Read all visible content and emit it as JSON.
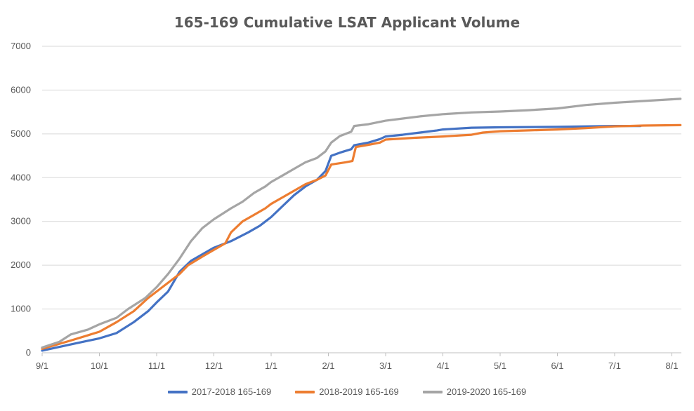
{
  "chart_data": {
    "type": "line",
    "title": "165-169 Cumulative LSAT Applicant Volume",
    "xlabel": "",
    "ylabel": "",
    "ylim": [
      0,
      7000
    ],
    "yticks": [
      0,
      1000,
      2000,
      3000,
      4000,
      5000,
      6000,
      7000
    ],
    "xlim": [
      0,
      11.15
    ],
    "xticks": [
      {
        "x": 0,
        "label": "9/1"
      },
      {
        "x": 1,
        "label": "10/1"
      },
      {
        "x": 2,
        "label": "11/1"
      },
      {
        "x": 3,
        "label": "12/1"
      },
      {
        "x": 4,
        "label": "1/1"
      },
      {
        "x": 5,
        "label": "2/1"
      },
      {
        "x": 6,
        "label": "3/1"
      },
      {
        "x": 7,
        "label": "4/1"
      },
      {
        "x": 8,
        "label": "5/1"
      },
      {
        "x": 9,
        "label": "6/1"
      },
      {
        "x": 10,
        "label": "7/1"
      },
      {
        "x": 11,
        "label": "8/1"
      }
    ],
    "grid": true,
    "legend_position": "bottom",
    "series": [
      {
        "name": "2017-2018 165-169",
        "color": "#4472C4",
        "points": [
          [
            0,
            50
          ],
          [
            0.5,
            190
          ],
          [
            1,
            330
          ],
          [
            1.3,
            450
          ],
          [
            1.6,
            700
          ],
          [
            1.85,
            950
          ],
          [
            2,
            1150
          ],
          [
            2.2,
            1400
          ],
          [
            2.4,
            1850
          ],
          [
            2.6,
            2100
          ],
          [
            2.8,
            2250
          ],
          [
            3,
            2400
          ],
          [
            3.3,
            2550
          ],
          [
            3.6,
            2750
          ],
          [
            3.8,
            2900
          ],
          [
            4,
            3100
          ],
          [
            4.2,
            3350
          ],
          [
            4.4,
            3600
          ],
          [
            4.6,
            3800
          ],
          [
            4.8,
            3950
          ],
          [
            4.95,
            4150
          ],
          [
            5.05,
            4500
          ],
          [
            5.2,
            4570
          ],
          [
            5.4,
            4650
          ],
          [
            5.45,
            4740
          ],
          [
            5.7,
            4800
          ],
          [
            5.9,
            4880
          ],
          [
            6,
            4940
          ],
          [
            6.3,
            4980
          ],
          [
            6.6,
            5030
          ],
          [
            6.9,
            5080
          ],
          [
            7,
            5100
          ],
          [
            7.5,
            5140
          ],
          [
            8,
            5150
          ],
          [
            9,
            5160
          ],
          [
            9.5,
            5170
          ],
          [
            10,
            5180
          ],
          [
            10.45,
            5180
          ]
        ]
      },
      {
        "name": "2018-2019 165-169",
        "color": "#ED7D31",
        "points": [
          [
            0,
            90
          ],
          [
            0.5,
            280
          ],
          [
            1,
            480
          ],
          [
            1.3,
            700
          ],
          [
            1.6,
            950
          ],
          [
            1.85,
            1250
          ],
          [
            2,
            1400
          ],
          [
            2.2,
            1600
          ],
          [
            2.4,
            1800
          ],
          [
            2.55,
            2000
          ],
          [
            2.8,
            2200
          ],
          [
            3,
            2350
          ],
          [
            3.2,
            2500
          ],
          [
            3.3,
            2750
          ],
          [
            3.5,
            3000
          ],
          [
            3.7,
            3150
          ],
          [
            3.9,
            3300
          ],
          [
            4,
            3400
          ],
          [
            4.2,
            3550
          ],
          [
            4.4,
            3700
          ],
          [
            4.6,
            3850
          ],
          [
            4.8,
            3950
          ],
          [
            4.95,
            4050
          ],
          [
            5.05,
            4300
          ],
          [
            5.3,
            4350
          ],
          [
            5.42,
            4380
          ],
          [
            5.48,
            4700
          ],
          [
            5.7,
            4750
          ],
          [
            5.9,
            4800
          ],
          [
            6,
            4870
          ],
          [
            6.5,
            4910
          ],
          [
            7,
            4940
          ],
          [
            7.5,
            4980
          ],
          [
            7.7,
            5030
          ],
          [
            8,
            5060
          ],
          [
            8.5,
            5080
          ],
          [
            9,
            5100
          ],
          [
            9.5,
            5130
          ],
          [
            10,
            5170
          ],
          [
            10.5,
            5190
          ],
          [
            11.15,
            5200
          ]
        ]
      },
      {
        "name": "2019-2020 165-169",
        "color": "#A5A5A5",
        "points": [
          [
            0,
            120
          ],
          [
            0.3,
            250
          ],
          [
            0.5,
            420
          ],
          [
            0.8,
            530
          ],
          [
            1,
            650
          ],
          [
            1.3,
            800
          ],
          [
            1.5,
            1000
          ],
          [
            1.8,
            1250
          ],
          [
            2,
            1500
          ],
          [
            2.2,
            1800
          ],
          [
            2.4,
            2150
          ],
          [
            2.6,
            2550
          ],
          [
            2.8,
            2850
          ],
          [
            3,
            3050
          ],
          [
            3.3,
            3300
          ],
          [
            3.5,
            3450
          ],
          [
            3.7,
            3650
          ],
          [
            3.9,
            3800
          ],
          [
            4,
            3900
          ],
          [
            4.2,
            4050
          ],
          [
            4.4,
            4200
          ],
          [
            4.6,
            4350
          ],
          [
            4.8,
            4450
          ],
          [
            4.95,
            4600
          ],
          [
            5.05,
            4800
          ],
          [
            5.2,
            4950
          ],
          [
            5.4,
            5050
          ],
          [
            5.45,
            5180
          ],
          [
            5.7,
            5220
          ],
          [
            6,
            5300
          ],
          [
            6.3,
            5350
          ],
          [
            6.6,
            5400
          ],
          [
            7,
            5450
          ],
          [
            7.5,
            5490
          ],
          [
            8,
            5510
          ],
          [
            8.5,
            5540
          ],
          [
            9,
            5580
          ],
          [
            9.5,
            5660
          ],
          [
            10,
            5710
          ],
          [
            10.5,
            5750
          ],
          [
            11.15,
            5800
          ]
        ]
      }
    ]
  }
}
